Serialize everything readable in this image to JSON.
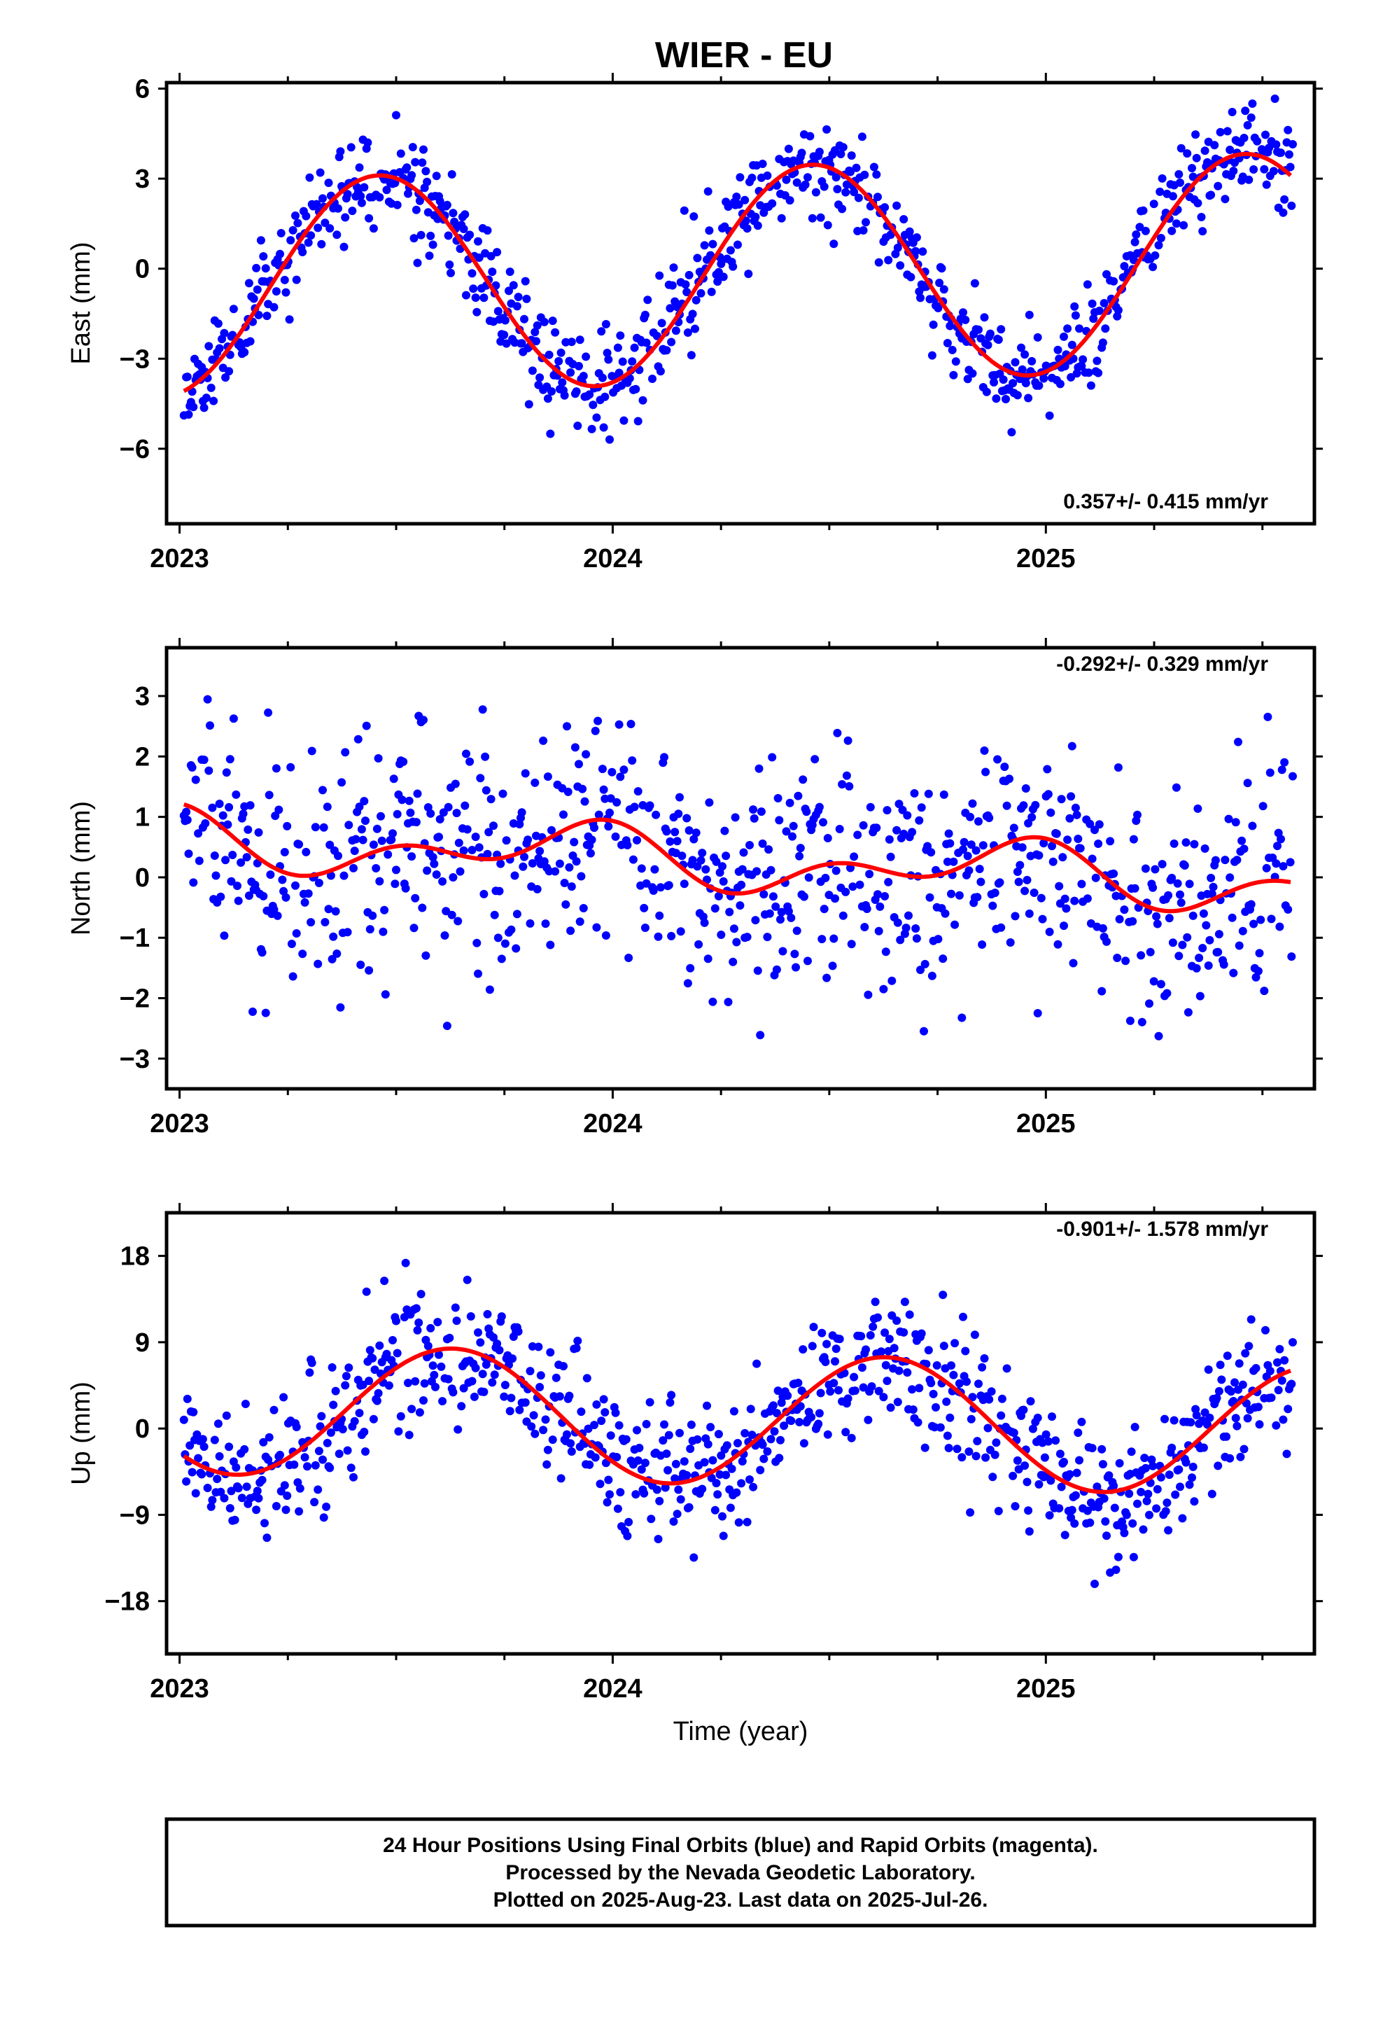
{
  "title": "WIER - EU",
  "chart_data": [
    {
      "type": "scatter",
      "ylabel": "East (mm)",
      "xlim": [
        2022.97,
        2025.62
      ],
      "ylim": [
        -8.5,
        6.2
      ],
      "yticks": [
        -6,
        -3,
        0,
        3,
        6
      ],
      "yticklabels": [
        "−6",
        "−3",
        "0",
        "3",
        "6"
      ],
      "xticks": [
        2023,
        2024,
        2025
      ],
      "xticklabels": [
        "2023",
        "2024",
        "2025"
      ],
      "rate": "0.357+/- 0.415 mm/yr",
      "rate_value": 0.357,
      "annual_amplitude": 3.6,
      "annual_peak": 2023.46,
      "curve_offset": -0.3,
      "noise": 0.85,
      "start": 2023.01,
      "end": 2025.57,
      "seed": 11,
      "colors": {
        "points": "#0000ff",
        "model": "#ff0000"
      }
    },
    {
      "type": "scatter",
      "ylabel": "North (mm)",
      "xlim": [
        2022.97,
        2025.62
      ],
      "ylim": [
        -3.5,
        3.8
      ],
      "yticks": [
        -3,
        -2,
        -1,
        0,
        1,
        2,
        3
      ],
      "yticklabels": [
        "−3",
        "−2",
        "−1",
        "0",
        "1",
        "2",
        "3"
      ],
      "xticks": [
        2023,
        2024,
        2025
      ],
      "xticklabels": [
        "2023",
        "2024",
        "2025"
      ],
      "rate": "-0.292+/- 0.329 mm/yr",
      "rate_value": -0.292,
      "annual_amplitude": 0.35,
      "annual_peak": 2023.9,
      "semiannual_amplitude": 0.3,
      "semiannual_peak": 2023.5,
      "curve_offset": 0.35,
      "noise": 0.95,
      "start": 2023.01,
      "end": 2025.57,
      "seed": 29,
      "colors": {
        "points": "#0000ff",
        "model": "#ff0000"
      }
    },
    {
      "type": "scatter",
      "ylabel": "Up (mm)",
      "xlim": [
        2022.97,
        2025.62
      ],
      "ylim": [
        -23.5,
        22.5
      ],
      "yticks": [
        -18,
        -9,
        0,
        9,
        18
      ],
      "yticklabels": [
        "−18",
        "−9",
        "0",
        "9",
        "18"
      ],
      "xticks": [
        2023,
        2024,
        2025
      ],
      "xticklabels": [
        "2023",
        "2024",
        "2025"
      ],
      "xlabel": "Time (year)",
      "rate": "-0.901+/- 1.578 mm/yr",
      "rate_value": -0.901,
      "annual_amplitude": 6.8,
      "annual_peak": 2023.63,
      "curve_offset": 1.2,
      "noise": 3.4,
      "start": 2023.01,
      "end": 2025.57,
      "seed": 47,
      "colors": {
        "points": "#0000ff",
        "model": "#ff0000"
      }
    }
  ],
  "footer": {
    "line1": "24 Hour Positions Using Final Orbits (blue) and Rapid Orbits (magenta).",
    "line2": "Processed by the Nevada Geodetic Laboratory.",
    "line3": "Plotted on 2025-Aug-23. Last data on 2025-Jul-26."
  }
}
